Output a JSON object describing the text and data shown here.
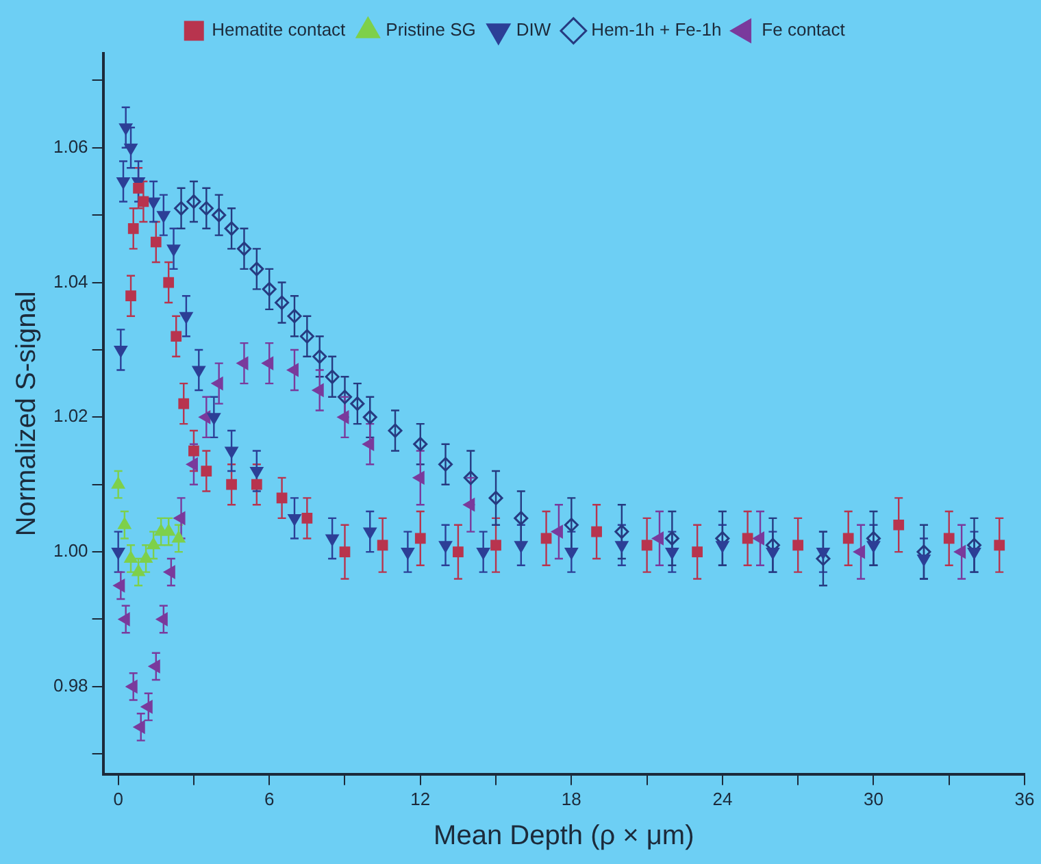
{
  "chart_data": {
    "type": "scatter",
    "xlabel": "Mean Depth (ρ × μm)",
    "ylabel": "Normalized S-signal",
    "xlim": [
      -0.6,
      36
    ],
    "xticks": [
      0,
      {
        "value": 3,
        "label": null
      },
      6,
      {
        "value": 9,
        "label": null
      },
      12,
      {
        "value": 15,
        "label": null
      },
      18,
      {
        "value": 21,
        "label": null
      },
      24,
      {
        "value": 27,
        "label": null
      },
      30,
      {
        "value": 33,
        "label": null
      },
      36
    ],
    "ylim": [
      0.967,
      1.074
    ],
    "yticks": [
      {
        "value": 0.97,
        "label": null
      },
      0.98,
      {
        "value": 0.99,
        "label": null
      },
      {
        "value": 1.0,
        "label": "1.00"
      },
      {
        "value": 1.01,
        "label": null
      },
      1.02,
      {
        "value": 1.03,
        "label": null
      },
      1.04,
      {
        "value": 1.05,
        "label": null
      },
      1.06,
      {
        "value": 1.07,
        "label": null
      }
    ],
    "legend": "top",
    "grid": false,
    "series": [
      {
        "name": "Hematite contact",
        "color": "#b8344e",
        "marker": "square",
        "x": [
          0.5,
          0.6,
          0.8,
          1.0,
          1.5,
          2.0,
          2.3,
          2.6,
          3.0,
          3.5,
          4.5,
          5.5,
          6.5,
          7.5,
          9,
          10.5,
          12,
          13.5,
          15,
          17,
          19,
          21,
          23,
          25,
          27,
          29,
          31,
          33,
          35
        ],
        "values": [
          1.038,
          1.048,
          1.054,
          1.052,
          1.046,
          1.04,
          1.032,
          1.022,
          1.015,
          1.012,
          1.01,
          1.01,
          1.008,
          1.005,
          1.0,
          1.001,
          1.002,
          1.0,
          1.001,
          1.002,
          1.003,
          1.001,
          1.0,
          1.002,
          1.001,
          1.002,
          1.004,
          1.002,
          1.001
        ],
        "errors": [
          0.003,
          0.003,
          0.003,
          0.003,
          0.003,
          0.003,
          0.003,
          0.003,
          0.003,
          0.003,
          0.003,
          0.003,
          0.003,
          0.003,
          0.004,
          0.004,
          0.004,
          0.004,
          0.004,
          0.004,
          0.004,
          0.004,
          0.004,
          0.004,
          0.004,
          0.004,
          0.004,
          0.004,
          0.004
        ]
      },
      {
        "name": "Pristine SG",
        "color": "#7ed04a",
        "marker": "triangle",
        "x": [
          0,
          0.25,
          0.5,
          0.8,
          1.1,
          1.4,
          1.7,
          2.0,
          2.4
        ],
        "values": [
          1.01,
          1.004,
          0.999,
          0.997,
          0.999,
          1.001,
          1.003,
          1.003,
          1.002
        ],
        "errors": [
          0.002,
          0.002,
          0.002,
          0.002,
          0.002,
          0.002,
          0.002,
          0.002,
          0.002
        ]
      },
      {
        "name": "DIW",
        "color": "#2c3f96",
        "marker": "triangle_down",
        "x": [
          0,
          0.1,
          0.2,
          0.3,
          0.5,
          0.8,
          1.4,
          1.8,
          2.2,
          2.7,
          3.2,
          3.8,
          4.5,
          5.5,
          7,
          8.5,
          10,
          11.5,
          13,
          14.5,
          16,
          18,
          20,
          22,
          24,
          26,
          28,
          30,
          32,
          34
        ],
        "values": [
          1.0,
          1.03,
          1.055,
          1.063,
          1.06,
          1.055,
          1.052,
          1.05,
          1.045,
          1.035,
          1.027,
          1.02,
          1.015,
          1.012,
          1.005,
          1.002,
          1.003,
          1.0,
          1.001,
          1.0,
          1.001,
          1.0,
          1.001,
          1.0,
          1.001,
          1.0,
          1.0,
          1.001,
          0.999,
          1.0
        ],
        "errors": [
          0.003,
          0.003,
          0.003,
          0.003,
          0.003,
          0.003,
          0.003,
          0.003,
          0.003,
          0.003,
          0.003,
          0.003,
          0.003,
          0.003,
          0.003,
          0.003,
          0.003,
          0.003,
          0.003,
          0.003,
          0.003,
          0.003,
          0.003,
          0.003,
          0.003,
          0.003,
          0.003,
          0.003,
          0.003,
          0.003
        ]
      },
      {
        "name": "Hem-1h + Fe-1h",
        "color": "#263a80",
        "marker": "diamond",
        "x": [
          2.5,
          3,
          3.5,
          4,
          4.5,
          5,
          5.5,
          6,
          6.5,
          7,
          7.5,
          8,
          8.5,
          9,
          9.5,
          10,
          11,
          12,
          13,
          14,
          15,
          16,
          18,
          20,
          22,
          24,
          26,
          28,
          30,
          32,
          34
        ],
        "values": [
          1.051,
          1.052,
          1.051,
          1.05,
          1.048,
          1.045,
          1.042,
          1.039,
          1.037,
          1.035,
          1.032,
          1.029,
          1.026,
          1.023,
          1.022,
          1.02,
          1.018,
          1.016,
          1.013,
          1.011,
          1.008,
          1.005,
          1.004,
          1.003,
          1.002,
          1.002,
          1.001,
          0.999,
          1.002,
          1.0,
          1.001
        ],
        "errors": [
          0.003,
          0.003,
          0.003,
          0.003,
          0.003,
          0.003,
          0.003,
          0.003,
          0.003,
          0.003,
          0.003,
          0.003,
          0.003,
          0.003,
          0.003,
          0.003,
          0.003,
          0.003,
          0.003,
          0.004,
          0.004,
          0.004,
          0.004,
          0.004,
          0.004,
          0.004,
          0.004,
          0.004,
          0.004,
          0.004,
          0.004
        ]
      },
      {
        "name": "Fe contact",
        "color": "#7a3a9c",
        "marker": "triangle_left",
        "x": [
          0.1,
          0.3,
          0.6,
          0.9,
          1.2,
          1.5,
          1.8,
          2.1,
          2.5,
          3,
          3.5,
          4,
          5,
          6,
          7,
          8,
          9,
          10,
          12,
          14,
          17.5,
          21.5,
          25.5,
          29.5,
          33.5
        ],
        "values": [
          0.995,
          0.99,
          0.98,
          0.974,
          0.977,
          0.983,
          0.99,
          0.997,
          1.005,
          1.013,
          1.02,
          1.025,
          1.028,
          1.028,
          1.027,
          1.024,
          1.02,
          1.016,
          1.011,
          1.007,
          1.003,
          1.002,
          1.002,
          1.0,
          1.0
        ],
        "errors": [
          0.002,
          0.002,
          0.002,
          0.002,
          0.002,
          0.002,
          0.002,
          0.002,
          0.003,
          0.003,
          0.003,
          0.003,
          0.003,
          0.003,
          0.003,
          0.003,
          0.003,
          0.003,
          0.004,
          0.004,
          0.004,
          0.004,
          0.004,
          0.004,
          0.004
        ]
      }
    ]
  }
}
